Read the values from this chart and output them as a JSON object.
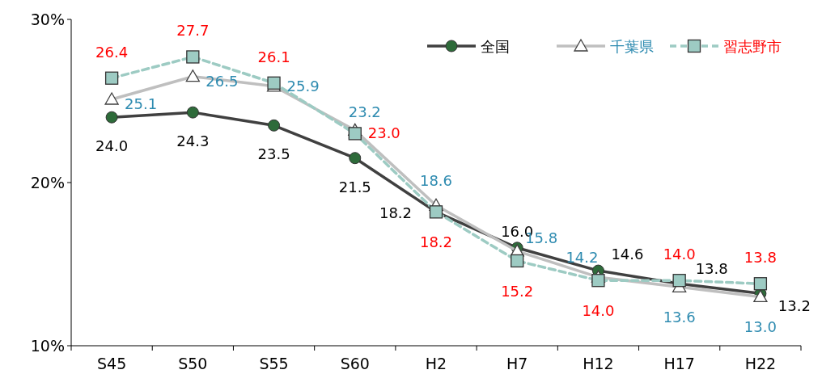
{
  "chart_data": {
    "type": "line",
    "categories": [
      "S45",
      "S50",
      "S55",
      "S60",
      "H2",
      "H7",
      "H12",
      "H17",
      "H22"
    ],
    "ylim": [
      10,
      30
    ],
    "yticks": [
      {
        "value": 10,
        "label": "10%"
      },
      {
        "value": 20,
        "label": "20%"
      },
      {
        "value": 30,
        "label": "30%"
      }
    ],
    "grid": false,
    "legend": "top right",
    "series": [
      {
        "name": "全国",
        "color": "#404040",
        "marker": "circle",
        "line_style": "solid",
        "values": [
          24.0,
          24.3,
          23.5,
          21.5,
          18.2,
          16.0,
          14.6,
          13.8,
          13.2
        ],
        "value_labels": [
          "24.0",
          "24.3",
          "23.5",
          "21.5",
          "18.2",
          "16.0",
          "14.6",
          "13.8",
          "13.2"
        ]
      },
      {
        "name": "千葉県",
        "color": "#bfbfbf",
        "marker": "triangle",
        "line_style": "solid",
        "values": [
          25.1,
          26.5,
          25.9,
          23.2,
          18.6,
          15.8,
          14.2,
          13.6,
          13.0
        ],
        "value_labels": [
          "25.1",
          "26.5",
          "25.9",
          "23.2",
          "18.6",
          "15.8",
          "14.2",
          "13.6",
          "13.0"
        ]
      },
      {
        "name": "習志野市",
        "color": "#9dcbc3",
        "marker": "square",
        "line_style": "dashed",
        "values": [
          26.4,
          27.7,
          26.1,
          23.0,
          18.2,
          15.2,
          14.0,
          14.0,
          13.8
        ],
        "value_labels": [
          "26.4",
          "27.7",
          "26.1",
          "23.0",
          "18.2",
          "15.2",
          "14.0",
          "14.0",
          "13.8"
        ]
      }
    ]
  }
}
